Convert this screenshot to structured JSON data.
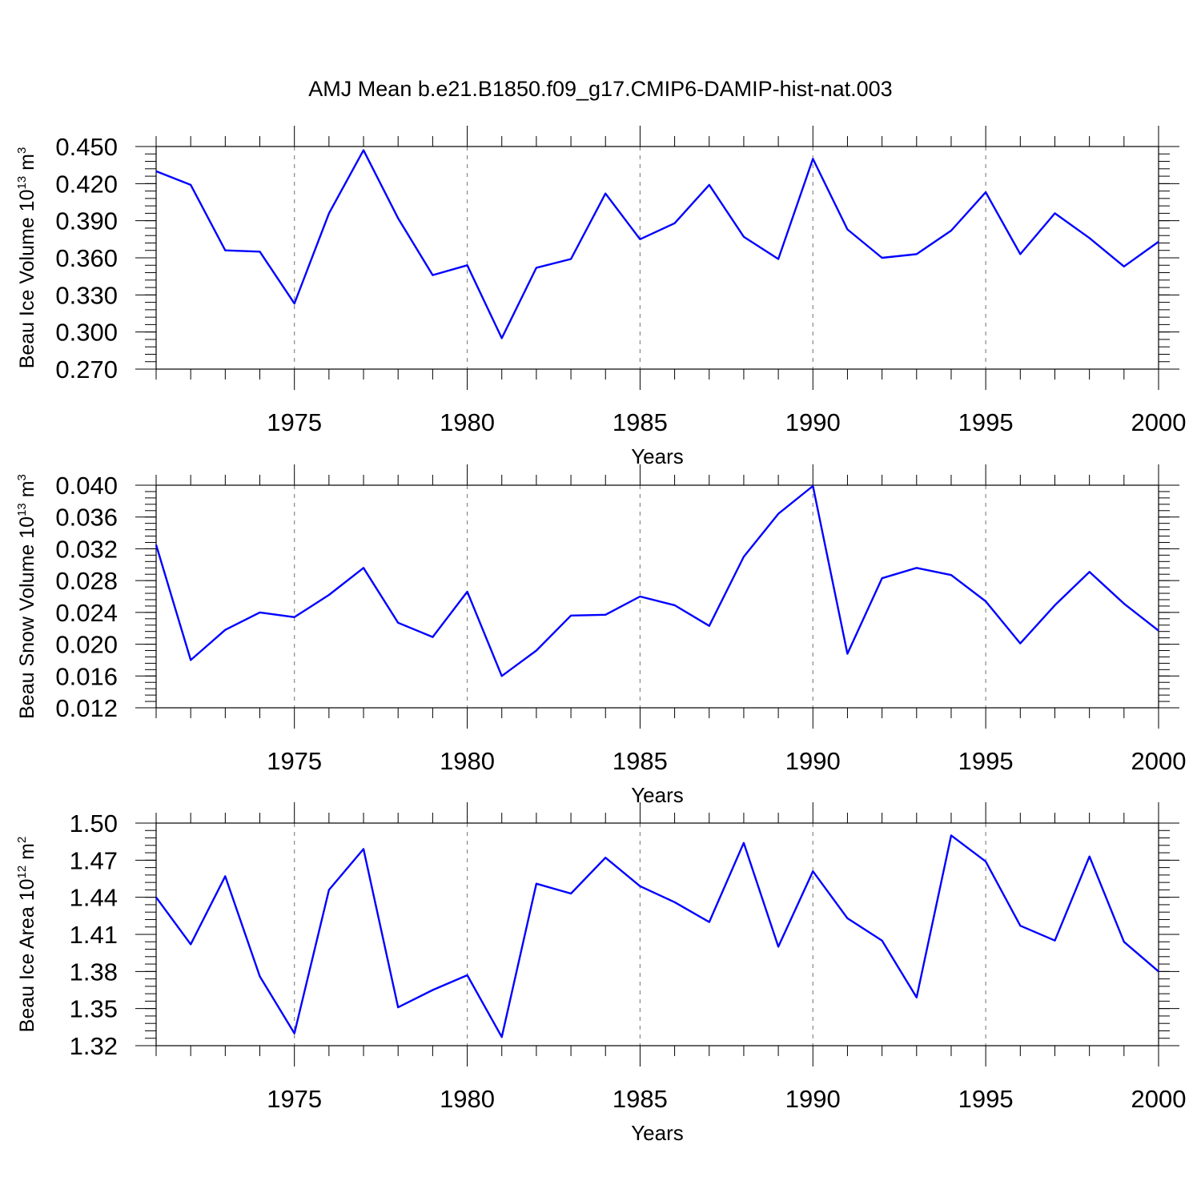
{
  "figure": {
    "title": "AMJ Mean b.e21.B1850.f09_g17.CMIP6-DAMIP-hist-nat.003",
    "line_color": "#0000ff"
  },
  "chart_data": [
    {
      "type": "line",
      "ylabel": {
        "text": "Beau Ice Volume 10",
        "sup": "13",
        "unit": " m",
        "unit_sup": "3"
      },
      "xlabel": "Years",
      "xlim": [
        1971,
        2000
      ],
      "ylim": [
        0.27,
        0.45
      ],
      "yticks": [
        "0.270",
        "0.300",
        "0.330",
        "0.360",
        "0.390",
        "0.420",
        "0.450"
      ],
      "ytick_values": [
        0.27,
        0.3,
        0.33,
        0.36,
        0.39,
        0.42,
        0.45
      ],
      "y_minor_step": 0.006,
      "xticks": [
        "1975",
        "1980",
        "1985",
        "1990",
        "1995",
        "2000"
      ],
      "xtick_values": [
        1975,
        1980,
        1985,
        1990,
        1995,
        2000
      ],
      "grid_x": [
        1975,
        1980,
        1985,
        1990,
        1995
      ],
      "series": [
        {
          "name": "Beau Ice Volume",
          "x": [
            1971,
            1972,
            1973,
            1974,
            1975,
            1976,
            1977,
            1978,
            1979,
            1980,
            1981,
            1982,
            1983,
            1984,
            1985,
            1986,
            1987,
            1988,
            1989,
            1990,
            1991,
            1992,
            1993,
            1994,
            1995,
            1996,
            1997,
            1998,
            1999,
            2000
          ],
          "values": [
            0.43,
            0.419,
            0.366,
            0.365,
            0.323,
            0.396,
            0.447,
            0.392,
            0.346,
            0.354,
            0.295,
            0.352,
            0.359,
            0.412,
            0.375,
            0.388,
            0.419,
            0.377,
            0.359,
            0.44,
            0.383,
            0.36,
            0.363,
            0.382,
            0.413,
            0.363,
            0.396,
            0.376,
            0.353,
            0.373
          ]
        }
      ]
    },
    {
      "type": "line",
      "ylabel": {
        "text": "Beau Snow Volume 10",
        "sup": "13",
        "unit": " m",
        "unit_sup": "3"
      },
      "xlabel": "Years",
      "xlim": [
        1971,
        2000
      ],
      "ylim": [
        0.012,
        0.04
      ],
      "yticks": [
        "0.012",
        "0.016",
        "0.020",
        "0.024",
        "0.028",
        "0.032",
        "0.036",
        "0.040"
      ],
      "ytick_values": [
        0.012,
        0.016,
        0.02,
        0.024,
        0.028,
        0.032,
        0.036,
        0.04
      ],
      "y_minor_step": 0.0008,
      "xticks": [
        "1975",
        "1980",
        "1985",
        "1990",
        "1995",
        "2000"
      ],
      "xtick_values": [
        1975,
        1980,
        1985,
        1990,
        1995,
        2000
      ],
      "grid_x": [
        1975,
        1980,
        1985,
        1990,
        1995
      ],
      "series": [
        {
          "name": "Beau Snow Volume",
          "x": [
            1971,
            1972,
            1973,
            1974,
            1975,
            1976,
            1977,
            1978,
            1979,
            1980,
            1981,
            1982,
            1983,
            1984,
            1985,
            1986,
            1987,
            1988,
            1989,
            1990,
            1991,
            1992,
            1993,
            1994,
            1995,
            1996,
            1997,
            1998,
            1999,
            2000
          ],
          "values": [
            0.0325,
            0.018,
            0.0218,
            0.024,
            0.0234,
            0.0262,
            0.0296,
            0.0227,
            0.0209,
            0.0266,
            0.016,
            0.0192,
            0.0236,
            0.0237,
            0.026,
            0.0249,
            0.0223,
            0.031,
            0.0364,
            0.0399,
            0.0188,
            0.0283,
            0.0296,
            0.0287,
            0.0254,
            0.0201,
            0.0249,
            0.0291,
            0.0251,
            0.0217
          ]
        }
      ]
    },
    {
      "type": "line",
      "ylabel": {
        "text": "Beau Ice Area 10",
        "sup": "12",
        "unit": " m",
        "unit_sup": "2"
      },
      "xlabel": "Years",
      "xlim": [
        1971,
        2000
      ],
      "ylim": [
        1.32,
        1.5
      ],
      "yticks": [
        "1.32",
        "1.35",
        "1.38",
        "1.41",
        "1.44",
        "1.47",
        "1.50"
      ],
      "ytick_values": [
        1.32,
        1.35,
        1.38,
        1.41,
        1.44,
        1.47,
        1.5
      ],
      "y_minor_step": 0.006,
      "xticks": [
        "1975",
        "1980",
        "1985",
        "1990",
        "1995",
        "2000"
      ],
      "xtick_values": [
        1975,
        1980,
        1985,
        1990,
        1995,
        2000
      ],
      "grid_x": [
        1975,
        1980,
        1985,
        1990,
        1995
      ],
      "series": [
        {
          "name": "Beau Ice Area",
          "x": [
            1971,
            1972,
            1973,
            1974,
            1975,
            1976,
            1977,
            1978,
            1979,
            1980,
            1981,
            1982,
            1983,
            1984,
            1985,
            1986,
            1987,
            1988,
            1989,
            1990,
            1991,
            1992,
            1993,
            1994,
            1995,
            1996,
            1997,
            1998,
            1999,
            2000
          ],
          "values": [
            1.44,
            1.402,
            1.457,
            1.376,
            1.33,
            1.446,
            1.479,
            1.351,
            1.365,
            1.377,
            1.327,
            1.451,
            1.443,
            1.472,
            1.449,
            1.436,
            1.42,
            1.484,
            1.4,
            1.461,
            1.423,
            1.405,
            1.359,
            1.49,
            1.469,
            1.417,
            1.405,
            1.473,
            1.404,
            1.38
          ]
        }
      ]
    }
  ]
}
